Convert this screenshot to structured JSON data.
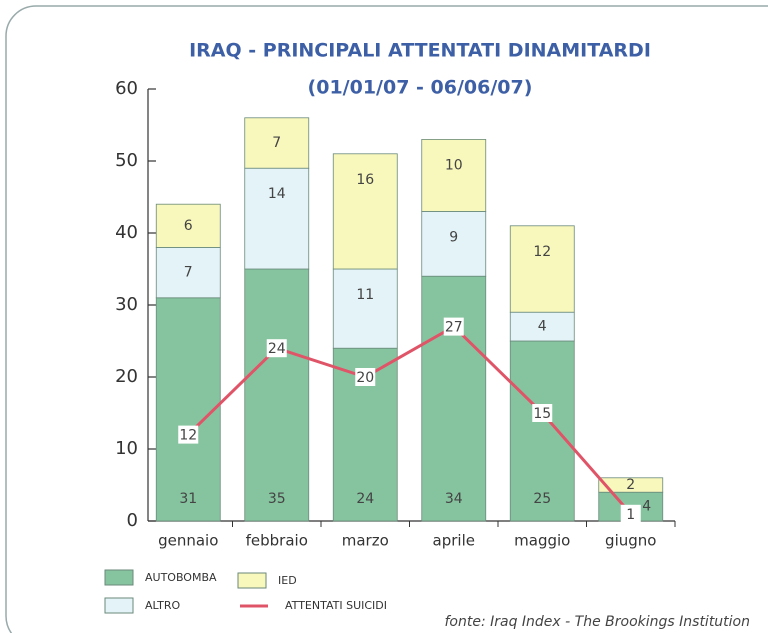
{
  "chart_data": {
    "type": "stacked_bar_line",
    "title": "IRAQ - PRINCIPALI ATTENTATI DINAMITARDI",
    "subtitle": "(01/01/07 - 06/06/07)",
    "categories": [
      "gennaio",
      "febbraio",
      "marzo",
      "aprile",
      "maggio",
      "giugno"
    ],
    "series": [
      {
        "name": "AUTOBOMBA",
        "color": "#86c4a0",
        "values": [
          31,
          35,
          24,
          34,
          25,
          4
        ]
      },
      {
        "name": "ALTRO",
        "color": "#e4f3f8",
        "values": [
          7,
          14,
          11,
          9,
          4,
          null
        ]
      },
      {
        "name": "IED",
        "color": "#f8f7bc",
        "values": [
          6,
          7,
          16,
          10,
          12,
          2
        ]
      }
    ],
    "line": {
      "name": "ATTENTATI SUICIDI",
      "color": "#e05468",
      "values": [
        12,
        24,
        20,
        27,
        15,
        1
      ]
    },
    "ylim": [
      0,
      60
    ],
    "yticks": [
      0,
      10,
      20,
      30,
      40,
      50,
      60
    ],
    "source": "fonte: Iraq Index - The Brookings Institution"
  }
}
